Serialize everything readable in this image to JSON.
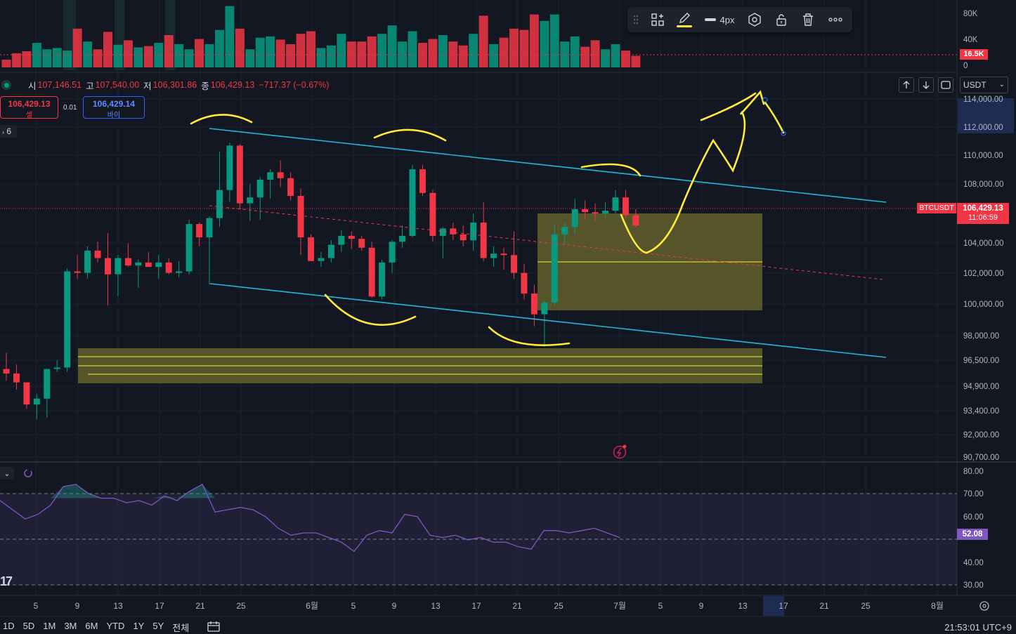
{
  "colors": {
    "up": "#089981",
    "down": "#f23645",
    "bg": "#131722",
    "grid": "#1c202b",
    "channel": "#22b8d8",
    "zone": "#6e6a2c",
    "drawing": "#ffeb3b",
    "rsi": "#7e57c2"
  },
  "ohlc": {
    "open_label": "시",
    "open": "107,146.51",
    "high_label": "고",
    "high": "107,540.00",
    "low_label": "저",
    "low": "106,301.86",
    "close_label": "종",
    "close": "106,429.13",
    "change": "−717.37 (−0.67%)"
  },
  "trade": {
    "sell_price": "106,429.13",
    "sell_label": "셀",
    "spread": "0.01",
    "buy_price": "106,429.14",
    "buy_label": "바이"
  },
  "layers": {
    "count": "6"
  },
  "toolbar": {
    "width_label": "4px",
    "tools": [
      "drag-handle",
      "template-icon",
      "pencil-icon",
      "line-width-icon",
      "settings-icon",
      "lock-icon",
      "trash-icon",
      "more-icon"
    ]
  },
  "currency": {
    "selected": "USDT"
  },
  "symbol": "BTCUSDT",
  "last_price": {
    "price": "106,429.13",
    "countdown": "11:06:59"
  },
  "volume": {
    "last": "16.5K",
    "scale_labels": [
      "80K",
      "40K",
      "0"
    ]
  },
  "price_axis": [
    "114,000.00",
    "112,000.00",
    "110,000.00",
    "108,000.00",
    "104,000.00",
    "102,000.00",
    "100,000.00",
    "98,000.00",
    "96,500.00",
    "94,900.00",
    "93,400.00",
    "92,000.00",
    "90,700.00"
  ],
  "rsi": {
    "value": "52.08",
    "scale_labels": [
      "80.00",
      "70.00",
      "60.00",
      "40.00",
      "30.00"
    ]
  },
  "time_axis": [
    "5",
    "9",
    "13",
    "17",
    "21",
    "25",
    "6월",
    "5",
    "9",
    "13",
    "17",
    "21",
    "25",
    "7월",
    "5",
    "9",
    "13",
    "17",
    "21",
    "25",
    "8월"
  ],
  "timeframes": [
    "1D",
    "5D",
    "1M",
    "3M",
    "6M",
    "YTD",
    "1Y",
    "5Y",
    "전체"
  ],
  "clock": "21:53:01 UTC+9",
  "chart_data": {
    "type": "candlestick",
    "candles": [
      {
        "o": 96700,
        "h": 97800,
        "l": 95900,
        "c": 96400
      },
      {
        "o": 96400,
        "h": 97000,
        "l": 95300,
        "c": 95800
      },
      {
        "o": 95800,
        "h": 95800,
        "l": 94000,
        "c": 94300
      },
      {
        "o": 94300,
        "h": 95000,
        "l": 93300,
        "c": 94700
      },
      {
        "o": 94700,
        "h": 96700,
        "l": 93400,
        "c": 96700
      },
      {
        "o": 96700,
        "h": 97300,
        "l": 96500,
        "c": 96800
      },
      {
        "o": 96800,
        "h": 103500,
        "l": 96500,
        "c": 103300
      },
      {
        "o": 103300,
        "h": 104400,
        "l": 102800,
        "c": 103200
      },
      {
        "o": 103200,
        "h": 105000,
        "l": 102800,
        "c": 104700
      },
      {
        "o": 104700,
        "h": 105300,
        "l": 103900,
        "c": 104200
      },
      {
        "o": 104200,
        "h": 105900,
        "l": 101000,
        "c": 103100
      },
      {
        "o": 103100,
        "h": 104400,
        "l": 101600,
        "c": 104200
      },
      {
        "o": 104200,
        "h": 105200,
        "l": 103600,
        "c": 103700
      },
      {
        "o": 103700,
        "h": 104100,
        "l": 102200,
        "c": 103900
      },
      {
        "o": 103900,
        "h": 104600,
        "l": 103600,
        "c": 103600
      },
      {
        "o": 103600,
        "h": 104400,
        "l": 102800,
        "c": 103900
      },
      {
        "o": 103900,
        "h": 104200,
        "l": 103100,
        "c": 103200
      },
      {
        "o": 103200,
        "h": 104000,
        "l": 102900,
        "c": 103300
      },
      {
        "o": 103300,
        "h": 106800,
        "l": 103100,
        "c": 106500
      },
      {
        "o": 106500,
        "h": 106600,
        "l": 105000,
        "c": 105600
      },
      {
        "o": 105600,
        "h": 107000,
        "l": 102400,
        "c": 106900
      },
      {
        "o": 106900,
        "h": 111400,
        "l": 106300,
        "c": 108800
      },
      {
        "o": 108800,
        "h": 112000,
        "l": 108000,
        "c": 111800
      },
      {
        "o": 111800,
        "h": 111900,
        "l": 107500,
        "c": 107900
      },
      {
        "o": 107900,
        "h": 109200,
        "l": 106700,
        "c": 108300
      },
      {
        "o": 108300,
        "h": 109700,
        "l": 106800,
        "c": 109500
      },
      {
        "o": 109500,
        "h": 110200,
        "l": 108200,
        "c": 110000
      },
      {
        "o": 110000,
        "h": 110800,
        "l": 109000,
        "c": 109600
      },
      {
        "o": 109600,
        "h": 110000,
        "l": 108100,
        "c": 108400
      },
      {
        "o": 108400,
        "h": 108900,
        "l": 104400,
        "c": 105600
      },
      {
        "o": 105600,
        "h": 105800,
        "l": 104000,
        "c": 104000
      },
      {
        "o": 104000,
        "h": 104600,
        "l": 103600,
        "c": 104200
      },
      {
        "o": 104200,
        "h": 105400,
        "l": 103900,
        "c": 105100
      },
      {
        "o": 105100,
        "h": 106100,
        "l": 104600,
        "c": 105700
      },
      {
        "o": 105700,
        "h": 106000,
        "l": 104800,
        "c": 105500
      },
      {
        "o": 105500,
        "h": 105700,
        "l": 104700,
        "c": 104900
      },
      {
        "o": 104900,
        "h": 105300,
        "l": 101500,
        "c": 101600
      },
      {
        "o": 101600,
        "h": 104100,
        "l": 101400,
        "c": 103900
      },
      {
        "o": 103900,
        "h": 105400,
        "l": 103200,
        "c": 105300
      },
      {
        "o": 105300,
        "h": 106400,
        "l": 104900,
        "c": 105700
      },
      {
        "o": 105700,
        "h": 110500,
        "l": 105600,
        "c": 110200
      },
      {
        "o": 110200,
        "h": 110500,
        "l": 108400,
        "c": 108600
      },
      {
        "o": 108600,
        "h": 108800,
        "l": 105300,
        "c": 105700
      },
      {
        "o": 105700,
        "h": 106300,
        "l": 104200,
        "c": 106200
      },
      {
        "o": 106200,
        "h": 106600,
        "l": 105400,
        "c": 105800
      },
      {
        "o": 105800,
        "h": 106400,
        "l": 105000,
        "c": 105400
      },
      {
        "o": 105400,
        "h": 107200,
        "l": 104700,
        "c": 106600
      },
      {
        "o": 106600,
        "h": 108000,
        "l": 104000,
        "c": 104200
      },
      {
        "o": 104200,
        "h": 105000,
        "l": 103600,
        "c": 104500
      },
      {
        "o": 104500,
        "h": 104900,
        "l": 103400,
        "c": 104400
      },
      {
        "o": 104400,
        "h": 106000,
        "l": 102800,
        "c": 103200
      },
      {
        "o": 103200,
        "h": 103800,
        "l": 101400,
        "c": 101800
      },
      {
        "o": 101800,
        "h": 102400,
        "l": 99600,
        "c": 100400
      },
      {
        "o": 100400,
        "h": 101300,
        "l": 98200,
        "c": 101200
      },
      {
        "o": 101200,
        "h": 106500,
        "l": 101000,
        "c": 105800
      },
      {
        "o": 105800,
        "h": 106600,
        "l": 105100,
        "c": 106300
      },
      {
        "o": 106300,
        "h": 108200,
        "l": 105800,
        "c": 107500
      },
      {
        "o": 107500,
        "h": 108100,
        "l": 106800,
        "c": 107300
      },
      {
        "o": 107300,
        "h": 107900,
        "l": 106700,
        "c": 107200
      },
      {
        "o": 107200,
        "h": 108000,
        "l": 106900,
        "c": 107400
      },
      {
        "o": 107400,
        "h": 108800,
        "l": 107200,
        "c": 108300
      },
      {
        "o": 108300,
        "h": 108800,
        "l": 106900,
        "c": 107100
      },
      {
        "o": 107100,
        "h": 107500,
        "l": 106300,
        "c": 106400
      }
    ],
    "volume": [
      12,
      22,
      25,
      38,
      28,
      30,
      26,
      60,
      40,
      28,
      55,
      35,
      42,
      31,
      33,
      38,
      50,
      36,
      28,
      44,
      36,
      58,
      95,
      60,
      28,
      46,
      48,
      43,
      36,
      52,
      56,
      30,
      34,
      52,
      40,
      40,
      48,
      52,
      65,
      40,
      56,
      38,
      44,
      50,
      40,
      34,
      52,
      80,
      36,
      46,
      60,
      58,
      82,
      72,
      82,
      40,
      48,
      32,
      42,
      28,
      36,
      26,
      18
    ],
    "rsi": [
      69,
      65,
      61,
      63,
      67,
      75,
      76,
      72,
      70,
      70,
      68,
      69,
      67,
      71,
      69,
      73,
      76,
      64,
      65,
      66,
      65,
      62,
      57,
      54,
      55,
      55,
      53,
      51,
      47,
      54,
      56,
      55,
      63,
      62,
      54,
      53,
      54,
      52,
      53,
      51,
      51,
      49,
      48,
      56,
      56,
      55,
      56,
      57,
      55,
      53
    ],
    "price_min": 90700,
    "price_max": 115000,
    "rsi_min": 28,
    "rsi_max": 82
  }
}
